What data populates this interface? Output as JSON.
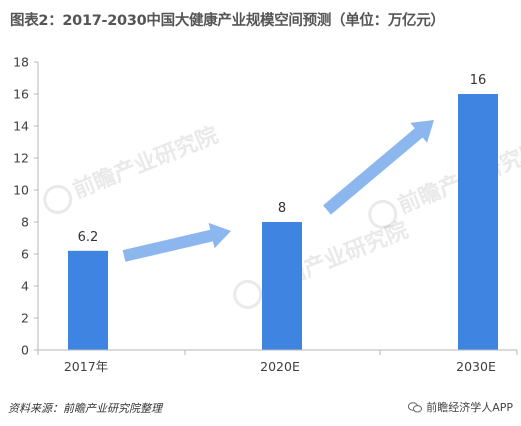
{
  "title": "图表2：2017-2030中国大健康产业规模空间预测（单位：万亿元）",
  "source": "资料来源：前瞻产业研究院整理",
  "wechat": "前瞻经济学人APP",
  "wechat_icon": "wechat-icon",
  "watermark": "前瞻产业研究院",
  "colors": {
    "bar": "#3f84e0",
    "arrow": "#8cb7ee",
    "axis": "#b7b7b7",
    "text": "#404040"
  },
  "chart_data": {
    "type": "bar",
    "title": "图表2：2017-2030中国大健康产业规模空间预测（单位：万亿元）",
    "categories": [
      "2017年",
      "2020E",
      "2030E"
    ],
    "values": [
      6.2,
      8,
      16
    ],
    "data_labels": [
      "6.2",
      "8",
      "16"
    ],
    "ylim": [
      0,
      18
    ],
    "yticks": [
      0,
      2,
      4,
      6,
      8,
      10,
      12,
      14,
      16,
      18
    ],
    "xlabel": "",
    "ylabel": "",
    "grid": false,
    "legend": "none",
    "annotations": [
      "arrow from 2017年 to 2020E",
      "arrow from 2020E to 2030E"
    ]
  }
}
